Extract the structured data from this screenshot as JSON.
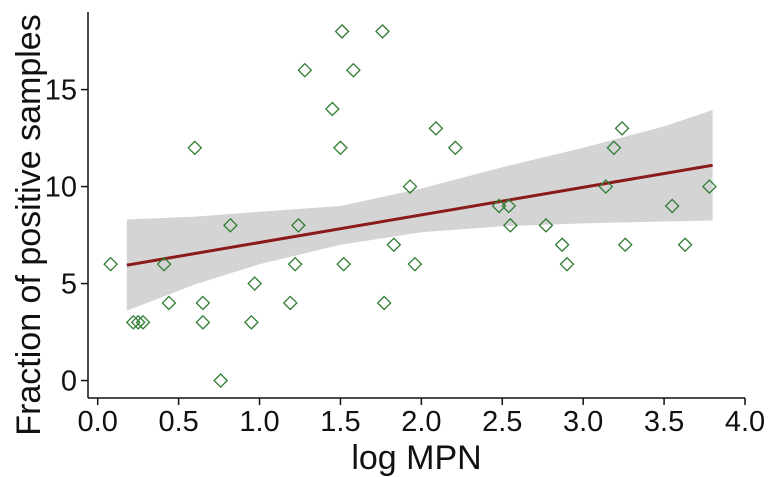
{
  "chart_data": {
    "type": "scatter",
    "xlabel": "log MPN",
    "ylabel": "Fraction of positive samples",
    "xlim": [
      -0.06,
      4.0
    ],
    "ylim": [
      -0.9,
      19.0
    ],
    "x_ticks": [
      0.0,
      0.5,
      1.0,
      1.5,
      2.0,
      2.5,
      3.0,
      3.5,
      4.0
    ],
    "x_tick_labels": [
      "0.0",
      "0.5",
      "1.0",
      "1.5",
      "2.0",
      "2.5",
      "3.0",
      "3.5",
      "4.0"
    ],
    "y_ticks": [
      0,
      5,
      10,
      15
    ],
    "y_tick_labels": [
      "0",
      "5",
      "10",
      "15"
    ],
    "grid": false,
    "marker": "open-diamond",
    "points": [
      {
        "x": 0.08,
        "y": 6
      },
      {
        "x": 0.22,
        "y": 3
      },
      {
        "x": 0.25,
        "y": 3
      },
      {
        "x": 0.28,
        "y": 3
      },
      {
        "x": 0.41,
        "y": 6
      },
      {
        "x": 0.44,
        "y": 4
      },
      {
        "x": 0.6,
        "y": 12
      },
      {
        "x": 0.65,
        "y": 4
      },
      {
        "x": 0.65,
        "y": 3
      },
      {
        "x": 0.76,
        "y": 0
      },
      {
        "x": 0.82,
        "y": 8
      },
      {
        "x": 0.95,
        "y": 3
      },
      {
        "x": 0.97,
        "y": 5
      },
      {
        "x": 1.19,
        "y": 4
      },
      {
        "x": 1.22,
        "y": 6
      },
      {
        "x": 1.24,
        "y": 8
      },
      {
        "x": 1.28,
        "y": 16
      },
      {
        "x": 1.45,
        "y": 14
      },
      {
        "x": 1.5,
        "y": 12
      },
      {
        "x": 1.51,
        "y": 18
      },
      {
        "x": 1.52,
        "y": 6
      },
      {
        "x": 1.58,
        "y": 16
      },
      {
        "x": 1.76,
        "y": 18
      },
      {
        "x": 1.77,
        "y": 4
      },
      {
        "x": 1.83,
        "y": 7
      },
      {
        "x": 1.93,
        "y": 10
      },
      {
        "x": 1.96,
        "y": 6
      },
      {
        "x": 2.09,
        "y": 13
      },
      {
        "x": 2.21,
        "y": 12
      },
      {
        "x": 2.48,
        "y": 9
      },
      {
        "x": 2.54,
        "y": 9
      },
      {
        "x": 2.55,
        "y": 8
      },
      {
        "x": 2.77,
        "y": 8
      },
      {
        "x": 2.87,
        "y": 7
      },
      {
        "x": 2.9,
        "y": 6
      },
      {
        "x": 3.14,
        "y": 10
      },
      {
        "x": 3.19,
        "y": 12
      },
      {
        "x": 3.24,
        "y": 13
      },
      {
        "x": 3.26,
        "y": 7
      },
      {
        "x": 3.55,
        "y": 9
      },
      {
        "x": 3.63,
        "y": 7
      },
      {
        "x": 3.78,
        "y": 10
      }
    ],
    "fit_line": {
      "x": [
        0.18,
        3.8
      ],
      "y": [
        5.95,
        11.1
      ]
    },
    "confidence_band": {
      "x": [
        0.18,
        0.6,
        1.0,
        1.5,
        2.0,
        2.5,
        3.0,
        3.5,
        3.8
      ],
      "lower": [
        3.6,
        4.95,
        6.0,
        7.0,
        7.65,
        7.95,
        8.1,
        8.2,
        8.25
      ],
      "upper": [
        8.3,
        8.45,
        8.7,
        9.0,
        9.9,
        11.0,
        12.0,
        13.1,
        13.95
      ]
    },
    "colors": {
      "marker": "#2e7d32",
      "fit_line": "#8b1a1a",
      "band": "#d4d4d4",
      "axis": "#111111"
    }
  }
}
